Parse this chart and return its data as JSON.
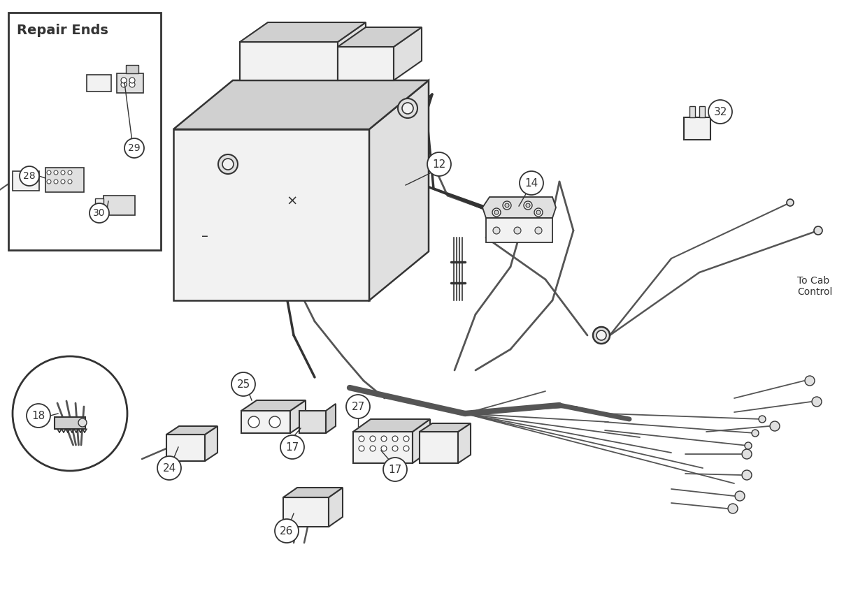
{
  "bg_color": "#ffffff",
  "line_color": "#555555",
  "dark_color": "#333333",
  "mid_gray": "#888888",
  "light_gray": "#cccccc",
  "fill_light": "#f2f2f2",
  "fill_mid": "#e0e0e0",
  "fill_dark": "#d0d0d0",
  "repair_ends_label": "Repair Ends",
  "to_cab_label": "To Cab\nControl",
  "label_12": "12",
  "label_14": "14",
  "label_17a": "17",
  "label_17b": "17",
  "label_18": "18",
  "label_24": "24",
  "label_25": "25",
  "label_26": "26",
  "label_27": "27",
  "label_28": "28",
  "label_29": "29",
  "label_30": "30",
  "label_32": "32"
}
